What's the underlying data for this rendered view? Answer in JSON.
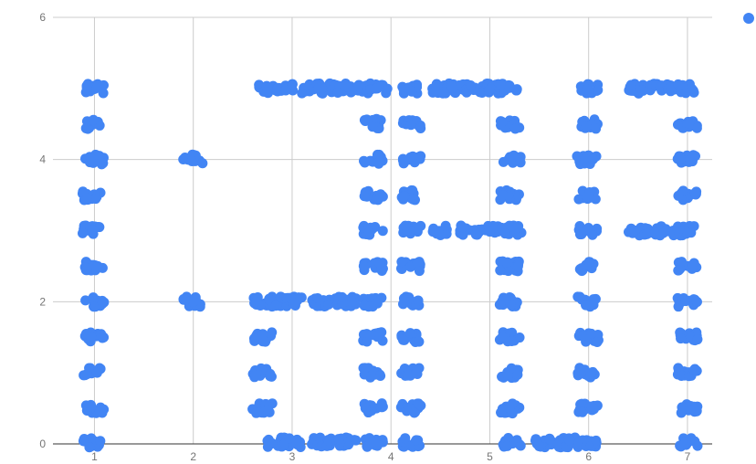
{
  "chart_data": {
    "type": "scatter",
    "title": "",
    "xlabel": "",
    "ylabel": "",
    "xlim": [
      0.58,
      7.25
    ],
    "ylim": [
      0,
      6
    ],
    "x_ticks": [
      "1",
      "2",
      "3",
      "4",
      "5",
      "6",
      "7"
    ],
    "y_ticks": [
      "0",
      "2",
      "4",
      "6"
    ],
    "grid": true,
    "legend": {
      "position": "top-right",
      "entries": [
        ""
      ]
    },
    "series_color": "#4285f4",
    "series": [
      {
        "name": "",
        "clusters": [
          {
            "x": 1.0,
            "y": 5.0
          },
          {
            "x": 1.0,
            "y": 4.5
          },
          {
            "x": 1.0,
            "y": 4.0
          },
          {
            "x": 0.98,
            "y": 3.5
          },
          {
            "x": 0.98,
            "y": 3.0
          },
          {
            "x": 1.0,
            "y": 2.5
          },
          {
            "x": 1.0,
            "y": 2.0
          },
          {
            "x": 1.0,
            "y": 1.5
          },
          {
            "x": 0.98,
            "y": 1.0
          },
          {
            "x": 1.0,
            "y": 0.5
          },
          {
            "x": 0.98,
            "y": 0.02
          },
          {
            "x": 2.0,
            "y": 4.0
          },
          {
            "x": 2.0,
            "y": 2.0
          },
          {
            "x": 2.75,
            "y": 5.0
          },
          {
            "x": 2.95,
            "y": 5.0
          },
          {
            "x": 3.2,
            "y": 5.0
          },
          {
            "x": 3.35,
            "y": 5.0
          },
          {
            "x": 3.5,
            "y": 5.0
          },
          {
            "x": 3.7,
            "y": 5.0
          },
          {
            "x": 3.88,
            "y": 5.0
          },
          {
            "x": 2.7,
            "y": 2.0
          },
          {
            "x": 2.85,
            "y": 2.0
          },
          {
            "x": 3.0,
            "y": 2.0
          },
          {
            "x": 3.3,
            "y": 2.0
          },
          {
            "x": 3.45,
            "y": 2.0
          },
          {
            "x": 3.55,
            "y": 2.0
          },
          {
            "x": 3.82,
            "y": 2.0
          },
          {
            "x": 2.7,
            "y": 1.5
          },
          {
            "x": 2.7,
            "y": 1.0
          },
          {
            "x": 2.7,
            "y": 0.5
          },
          {
            "x": 2.85,
            "y": 0.02
          },
          {
            "x": 3.0,
            "y": 0.02
          },
          {
            "x": 3.3,
            "y": 0.02
          },
          {
            "x": 3.45,
            "y": 0.02
          },
          {
            "x": 3.55,
            "y": 0.02
          },
          {
            "x": 3.82,
            "y": 0.02
          },
          {
            "x": 3.82,
            "y": 4.5
          },
          {
            "x": 3.82,
            "y": 4.0
          },
          {
            "x": 3.82,
            "y": 3.5
          },
          {
            "x": 3.82,
            "y": 3.0
          },
          {
            "x": 3.82,
            "y": 2.5
          },
          {
            "x": 3.82,
            "y": 1.5
          },
          {
            "x": 3.82,
            "y": 1.0
          },
          {
            "x": 3.82,
            "y": 0.5
          },
          {
            "x": 4.2,
            "y": 5.0
          },
          {
            "x": 4.2,
            "y": 4.5
          },
          {
            "x": 4.2,
            "y": 4.0
          },
          {
            "x": 4.2,
            "y": 3.5
          },
          {
            "x": 4.2,
            "y": 3.0
          },
          {
            "x": 4.2,
            "y": 2.5
          },
          {
            "x": 4.2,
            "y": 2.0
          },
          {
            "x": 4.2,
            "y": 1.5
          },
          {
            "x": 4.2,
            "y": 1.0
          },
          {
            "x": 4.2,
            "y": 0.5
          },
          {
            "x": 4.2,
            "y": 0.02
          },
          {
            "x": 4.5,
            "y": 5.0
          },
          {
            "x": 4.7,
            "y": 5.0
          },
          {
            "x": 4.9,
            "y": 5.0
          },
          {
            "x": 5.05,
            "y": 5.0
          },
          {
            "x": 5.2,
            "y": 5.0
          },
          {
            "x": 4.5,
            "y": 3.0
          },
          {
            "x": 4.8,
            "y": 3.0
          },
          {
            "x": 4.95,
            "y": 3.0
          },
          {
            "x": 5.1,
            "y": 3.0
          },
          {
            "x": 5.22,
            "y": 3.0
          },
          {
            "x": 5.2,
            "y": 4.5
          },
          {
            "x": 5.22,
            "y": 4.0
          },
          {
            "x": 5.2,
            "y": 3.5
          },
          {
            "x": 5.2,
            "y": 2.5
          },
          {
            "x": 5.2,
            "y": 2.0
          },
          {
            "x": 5.2,
            "y": 1.5
          },
          {
            "x": 5.22,
            "y": 1.0
          },
          {
            "x": 5.2,
            "y": 0.5
          },
          {
            "x": 5.22,
            "y": 0.02
          },
          {
            "x": 5.55,
            "y": 0.02
          },
          {
            "x": 5.7,
            "y": 0.02
          },
          {
            "x": 5.85,
            "y": 0.02
          },
          {
            "x": 6.0,
            "y": 5.0
          },
          {
            "x": 6.0,
            "y": 4.5
          },
          {
            "x": 5.98,
            "y": 4.0
          },
          {
            "x": 5.98,
            "y": 3.5
          },
          {
            "x": 6.0,
            "y": 3.0
          },
          {
            "x": 6.0,
            "y": 2.5
          },
          {
            "x": 5.98,
            "y": 2.0
          },
          {
            "x": 6.0,
            "y": 1.5
          },
          {
            "x": 5.98,
            "y": 1.0
          },
          {
            "x": 6.0,
            "y": 0.5
          },
          {
            "x": 6.0,
            "y": 0.02
          },
          {
            "x": 6.5,
            "y": 5.0
          },
          {
            "x": 6.7,
            "y": 5.0
          },
          {
            "x": 6.9,
            "y": 5.0
          },
          {
            "x": 7.0,
            "y": 5.0
          },
          {
            "x": 6.5,
            "y": 3.0
          },
          {
            "x": 6.65,
            "y": 3.0
          },
          {
            "x": 6.85,
            "y": 3.0
          },
          {
            "x": 7.0,
            "y": 3.0
          },
          {
            "x": 7.0,
            "y": 4.5
          },
          {
            "x": 7.0,
            "y": 4.0
          },
          {
            "x": 7.0,
            "y": 3.5
          },
          {
            "x": 7.0,
            "y": 2.5
          },
          {
            "x": 7.0,
            "y": 2.0
          },
          {
            "x": 7.0,
            "y": 1.5
          },
          {
            "x": 7.0,
            "y": 1.0
          },
          {
            "x": 7.0,
            "y": 0.5
          },
          {
            "x": 7.02,
            "y": 0.02
          }
        ]
      }
    ]
  }
}
